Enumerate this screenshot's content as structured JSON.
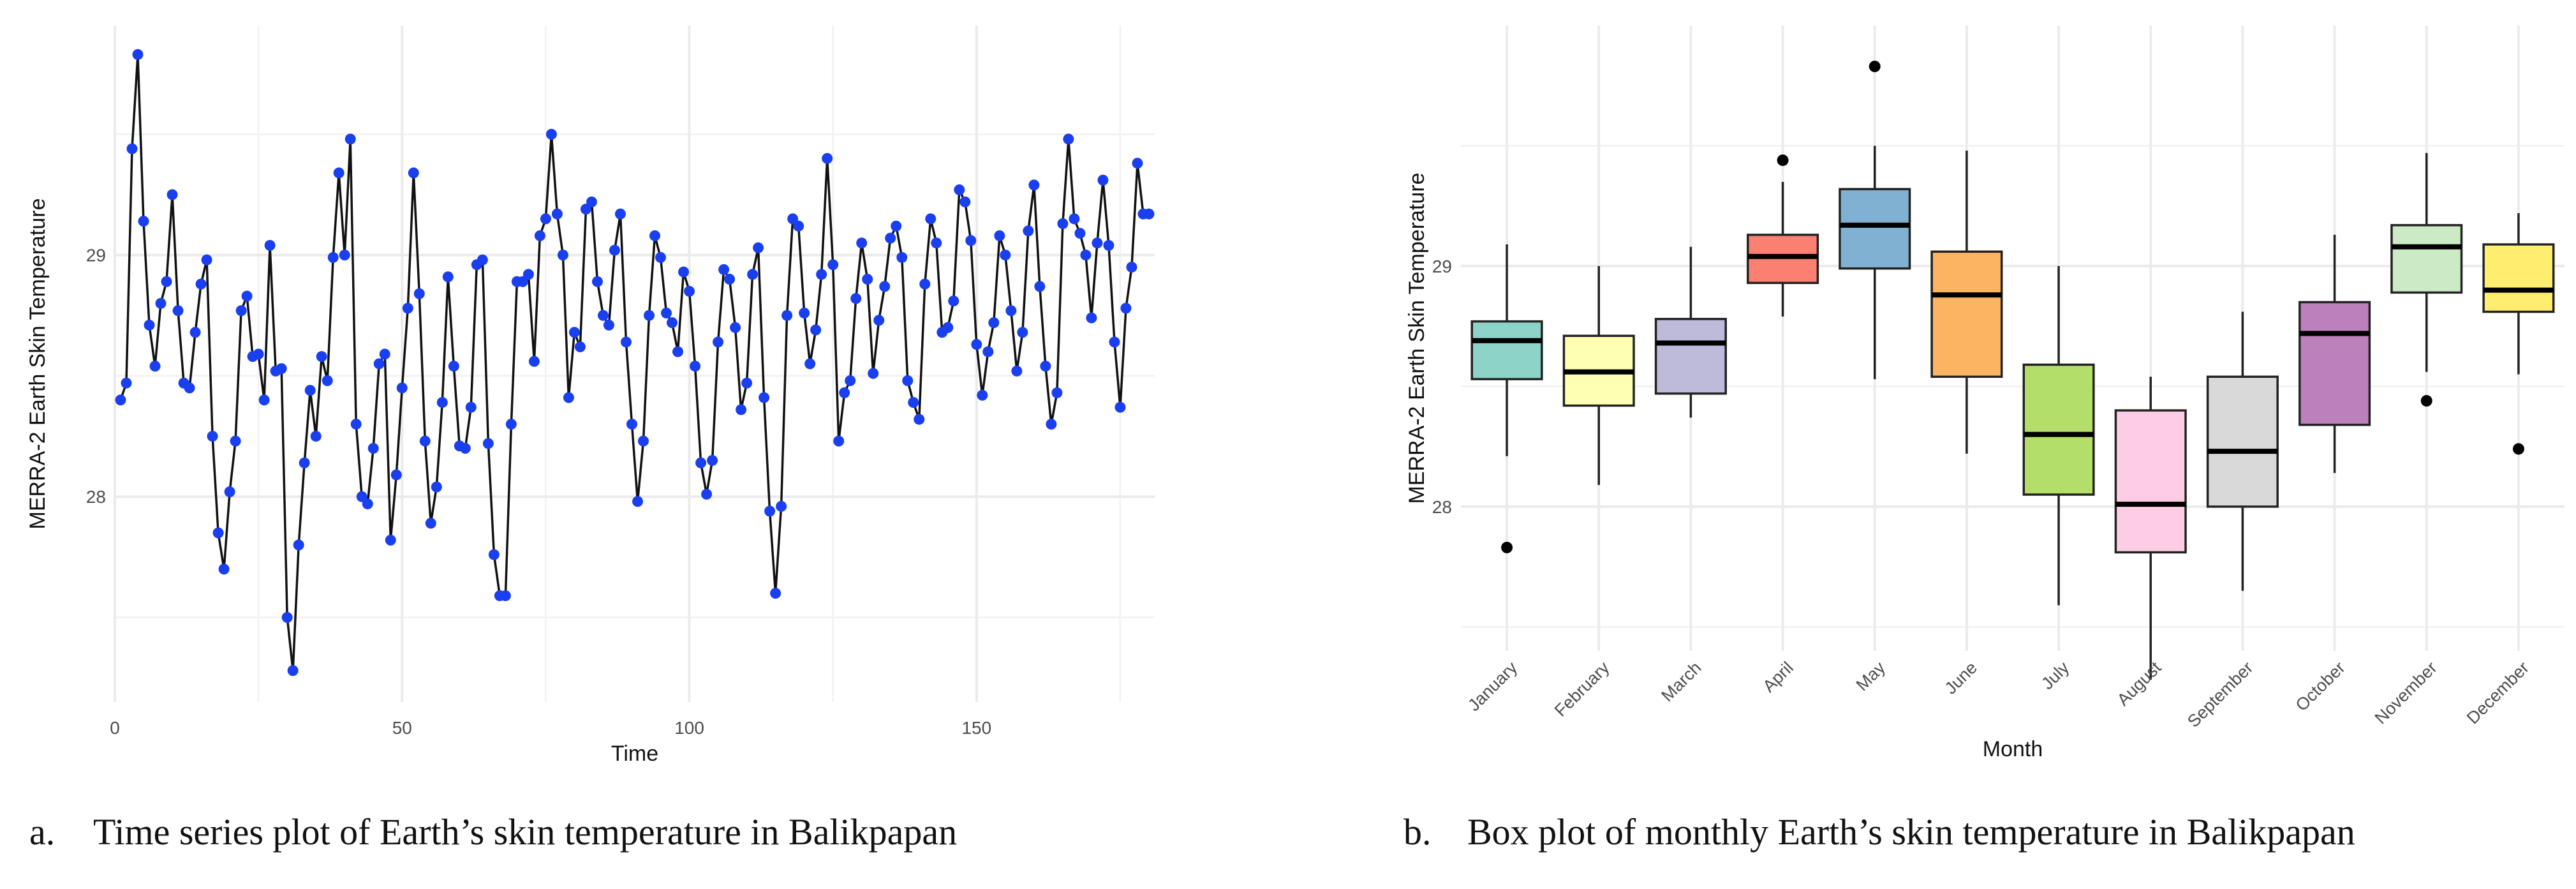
{
  "chart_data": [
    {
      "type": "line",
      "title": "",
      "xlabel": "Time",
      "ylabel": "MERRA-2 Earth Skin Temperature",
      "xlim": [
        0,
        181
      ],
      "ylim": [
        27.15,
        29.95
      ],
      "xticks": [
        0,
        50,
        100,
        150
      ],
      "xtick_labels": [
        "0",
        "50",
        "100",
        "150"
      ],
      "yticks": [
        28,
        29
      ],
      "ytick_labels": [
        "28",
        "29"
      ],
      "grid": true,
      "line_color": "#111111",
      "point_color": "#1a3ff0",
      "x": [
        1,
        2,
        3,
        4,
        5,
        6,
        7,
        8,
        9,
        10,
        11,
        12,
        13,
        14,
        15,
        16,
        17,
        18,
        19,
        20,
        21,
        22,
        23,
        24,
        25,
        26,
        27,
        28,
        29,
        30,
        31,
        32,
        33,
        34,
        35,
        36,
        37,
        38,
        39,
        40,
        41,
        42,
        43,
        44,
        45,
        46,
        47,
        48,
        49,
        50,
        51,
        52,
        53,
        54,
        55,
        56,
        57,
        58,
        59,
        60,
        61,
        62,
        63,
        64,
        65,
        66,
        67,
        68,
        69,
        70,
        71,
        72,
        73,
        74,
        75,
        76,
        77,
        78,
        79,
        80,
        81,
        82,
        83,
        84,
        85,
        86,
        87,
        88,
        89,
        90,
        91,
        92,
        93,
        94,
        95,
        96,
        97,
        98,
        99,
        100,
        101,
        102,
        103,
        104,
        105,
        106,
        107,
        108,
        109,
        110,
        111,
        112,
        113,
        114,
        115,
        116,
        117,
        118,
        119,
        120,
        121,
        122,
        123,
        124,
        125,
        126,
        127,
        128,
        129,
        130,
        131,
        132,
        133,
        134,
        135,
        136,
        137,
        138,
        139,
        140,
        141,
        142,
        143,
        144,
        145,
        146,
        147,
        148,
        149,
        150,
        151,
        152,
        153,
        154,
        155,
        156,
        157,
        158,
        159,
        160,
        161,
        162,
        163,
        164,
        165,
        166,
        167,
        168,
        169,
        170,
        171,
        172,
        173,
        174,
        175,
        176,
        177,
        178,
        179,
        180
      ],
      "y": [
        28.4,
        28.47,
        29.44,
        29.83,
        29.14,
        28.71,
        28.54,
        28.8,
        28.89,
        29.25,
        28.77,
        28.47,
        28.45,
        28.68,
        28.88,
        28.98,
        28.25,
        27.85,
        27.7,
        28.02,
        28.23,
        28.77,
        28.83,
        28.58,
        28.59,
        28.4,
        29.04,
        28.52,
        28.53,
        27.5,
        27.28,
        27.8,
        28.14,
        28.44,
        28.25,
        28.58,
        28.48,
        28.99,
        29.34,
        29.0,
        29.48,
        28.3,
        28.0,
        27.97,
        28.2,
        28.55,
        28.59,
        27.82,
        28.09,
        28.45,
        28.78,
        29.34,
        28.84,
        28.23,
        27.89,
        28.04,
        28.39,
        28.91,
        28.54,
        28.21,
        28.2,
        28.37,
        28.96,
        28.98,
        28.22,
        27.76,
        27.59,
        27.59,
        28.3,
        28.89,
        28.89,
        28.92,
        28.56,
        29.08,
        29.15,
        29.5,
        29.17,
        29.0,
        28.41,
        28.68,
        28.62,
        29.19,
        29.22,
        28.89,
        28.75,
        28.71,
        29.02,
        29.17,
        28.64,
        28.3,
        27.98,
        28.23,
        28.75,
        29.08,
        28.99,
        28.76,
        28.72,
        28.6,
        28.93,
        28.85,
        28.54,
        28.14,
        28.01,
        28.15,
        28.64,
        28.94,
        28.9,
        28.7,
        28.36,
        28.47,
        28.92,
        29.03,
        28.41,
        27.94,
        27.6,
        27.96,
        28.75,
        29.15,
        29.12,
        28.76,
        28.55,
        28.69,
        28.92,
        29.4,
        28.96,
        28.23,
        28.43,
        28.48,
        28.82,
        29.05,
        28.9,
        28.51,
        28.73,
        28.87,
        29.07,
        29.12,
        28.99,
        28.48,
        28.39,
        28.32,
        28.88,
        29.15,
        29.05,
        28.68,
        28.7,
        28.81,
        29.27,
        29.22,
        29.06,
        28.63,
        28.42,
        28.6,
        28.72,
        29.08,
        29.0,
        28.77,
        28.52,
        28.68,
        29.1,
        29.29,
        28.87,
        28.54,
        28.3,
        28.43,
        29.13,
        29.48,
        29.15,
        29.09,
        29.0,
        28.74,
        29.05,
        29.31,
        29.04,
        28.64,
        28.37,
        28.78,
        28.95,
        29.38,
        29.17,
        29.17
      ]
    },
    {
      "type": "box",
      "title": "",
      "xlabel": "Month",
      "ylabel": "MERRA-2 Earth Skin Temperature",
      "ylim": [
        27.4,
        30.0
      ],
      "yticks": [
        28,
        29
      ],
      "ytick_labels": [
        "28",
        "29"
      ],
      "grid": true,
      "categories": [
        "January",
        "February",
        "March",
        "April",
        "May",
        "June",
        "July",
        "August",
        "September",
        "October",
        "November",
        "December"
      ],
      "series": [
        {
          "name": "January",
          "color": "#8dd3c7",
          "whisker_low": 28.21,
          "q1": 28.53,
          "median": 28.69,
          "q3": 28.77,
          "whisker_high": 29.09,
          "outliers": [
            27.83
          ]
        },
        {
          "name": "February",
          "color": "#ffffb3",
          "whisker_low": 28.09,
          "q1": 28.42,
          "median": 28.56,
          "q3": 28.71,
          "whisker_high": 29.0,
          "outliers": []
        },
        {
          "name": "March",
          "color": "#bebada",
          "whisker_low": 28.37,
          "q1": 28.47,
          "median": 28.68,
          "q3": 28.78,
          "whisker_high": 29.08,
          "outliers": []
        },
        {
          "name": "April",
          "color": "#fb8072",
          "whisker_low": 28.79,
          "q1": 28.93,
          "median": 29.04,
          "q3": 29.13,
          "whisker_high": 29.35,
          "outliers": [
            29.44
          ]
        },
        {
          "name": "May",
          "color": "#80b1d3",
          "whisker_low": 28.53,
          "q1": 28.99,
          "median": 29.17,
          "q3": 29.32,
          "whisker_high": 29.5,
          "outliers": [
            29.83
          ]
        },
        {
          "name": "June",
          "color": "#fdb462",
          "whisker_low": 28.22,
          "q1": 28.54,
          "median": 28.88,
          "q3": 29.06,
          "whisker_high": 29.48,
          "outliers": []
        },
        {
          "name": "July",
          "color": "#b3de69",
          "whisker_low": 27.59,
          "q1": 28.05,
          "median": 28.3,
          "q3": 28.59,
          "whisker_high": 29.0,
          "outliers": []
        },
        {
          "name": "August",
          "color": "#fccde5",
          "whisker_low": 27.28,
          "q1": 27.81,
          "median": 28.01,
          "q3": 28.4,
          "whisker_high": 28.54,
          "outliers": []
        },
        {
          "name": "September",
          "color": "#d9d9d9",
          "whisker_low": 27.65,
          "q1": 28.0,
          "median": 28.23,
          "q3": 28.54,
          "whisker_high": 28.81,
          "outliers": []
        },
        {
          "name": "October",
          "color": "#bc80bd",
          "whisker_low": 28.14,
          "q1": 28.34,
          "median": 28.72,
          "q3": 28.85,
          "whisker_high": 29.13,
          "outliers": []
        },
        {
          "name": "November",
          "color": "#ccebc5",
          "whisker_low": 28.56,
          "q1": 28.89,
          "median": 29.08,
          "q3": 29.17,
          "whisker_high": 29.47,
          "outliers": [
            28.44
          ]
        },
        {
          "name": "December",
          "color": "#ffed6f",
          "whisker_low": 28.55,
          "q1": 28.81,
          "median": 28.9,
          "q3": 29.09,
          "whisker_high": 29.22,
          "outliers": [
            28.24
          ]
        }
      ]
    }
  ],
  "captions": {
    "a_letter": "a.",
    "a_text": "Time series plot of Earth’s skin temperature in Balikpapan",
    "b_letter": "b.",
    "b_text": "Box plot of monthly Earth’s skin temperature in Balikpapan"
  }
}
